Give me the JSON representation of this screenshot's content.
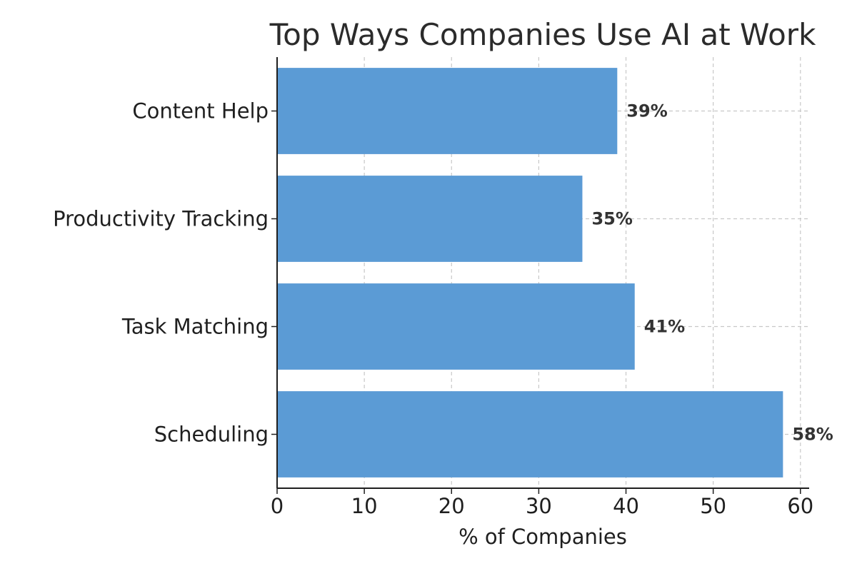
{
  "chart_data": {
    "type": "bar",
    "orientation": "horizontal",
    "title": "Top Ways Companies Use AI at Work",
    "xlabel": "% of Companies",
    "ylabel": "",
    "categories": [
      "Content Help",
      "Productivity Tracking",
      "Task Matching",
      "Scheduling"
    ],
    "values": [
      39,
      35,
      41,
      58
    ],
    "value_labels": [
      "39%",
      "35%",
      "41%",
      "58%"
    ],
    "xlim": [
      0,
      61
    ],
    "xticks": [
      0,
      10,
      20,
      30,
      40,
      50,
      60
    ],
    "xtick_labels": [
      "0",
      "10",
      "20",
      "30",
      "40",
      "50",
      "60"
    ],
    "grid": true,
    "colors": {
      "bar": "#5b9bd5",
      "grid": "#c8c8c8",
      "axis": "#1f1f1f",
      "text": "#1f1f1f",
      "value_label": "#333333"
    }
  }
}
